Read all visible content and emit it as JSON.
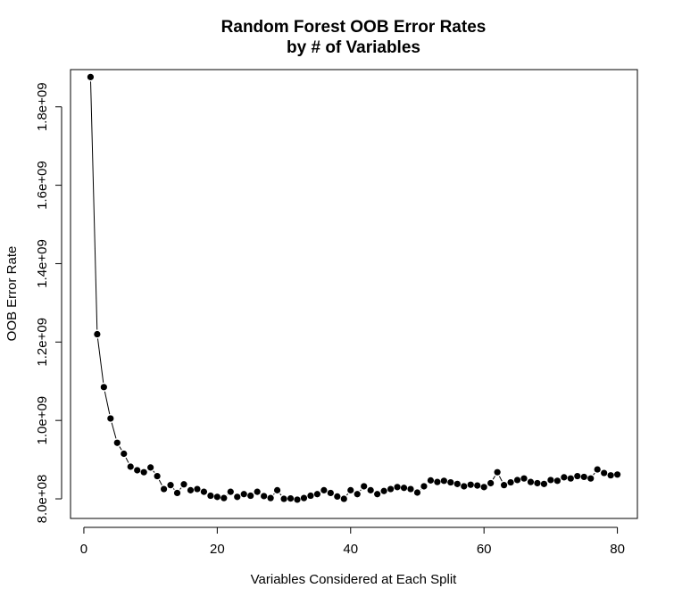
{
  "chart_data": {
    "type": "line",
    "title_lines": [
      "Random Forest OOB Error Rates",
      "by # of Variables"
    ],
    "xlabel": "Variables Considered at Each Split",
    "ylabel": "OOB Error Rate",
    "xlim": [
      -2,
      83
    ],
    "ylim": [
      750000000,
      1895000000
    ],
    "x_ticks": [
      0,
      20,
      40,
      60,
      80
    ],
    "x_tick_labels": [
      "0",
      "20",
      "40",
      "60",
      "80"
    ],
    "y_ticks": [
      800000000,
      1000000000,
      1200000000,
      1400000000,
      1600000000,
      1800000000
    ],
    "y_tick_labels": [
      "8.0e+08",
      "1.0e+09",
      "1.2e+09",
      "1.4e+09",
      "1.6e+09",
      "1.8e+09"
    ],
    "grid": false,
    "legend": "none",
    "series": [
      {
        "style": "points-and-lines",
        "color": "#000000",
        "x": [
          1,
          2,
          3,
          4,
          5,
          6,
          7,
          8,
          9,
          10,
          11,
          12,
          13,
          14,
          15,
          16,
          17,
          18,
          19,
          20,
          21,
          22,
          23,
          24,
          25,
          26,
          27,
          28,
          29,
          30,
          31,
          32,
          33,
          34,
          35,
          36,
          37,
          38,
          39,
          40,
          41,
          42,
          43,
          44,
          45,
          46,
          47,
          48,
          49,
          50,
          51,
          52,
          53,
          54,
          55,
          56,
          57,
          58,
          59,
          60,
          61,
          62,
          63,
          64,
          65,
          66,
          67,
          68,
          69,
          70,
          71,
          72,
          73,
          74,
          75,
          76,
          77,
          78,
          79,
          80
        ],
        "y": [
          1876000000,
          1220000000,
          1085000000,
          1005000000,
          943000000,
          915000000,
          882000000,
          873000000,
          868000000,
          880000000,
          858000000,
          825000000,
          835000000,
          815000000,
          837000000,
          822000000,
          825000000,
          818000000,
          808000000,
          805000000,
          802000000,
          818000000,
          805000000,
          812000000,
          808000000,
          818000000,
          807000000,
          802000000,
          822000000,
          800000000,
          801000000,
          798000000,
          802000000,
          808000000,
          812000000,
          822000000,
          815000000,
          806000000,
          800000000,
          822000000,
          812000000,
          832000000,
          822000000,
          812000000,
          820000000,
          825000000,
          830000000,
          828000000,
          825000000,
          816000000,
          832000000,
          847000000,
          843000000,
          846000000,
          842000000,
          838000000,
          832000000,
          836000000,
          834000000,
          830000000,
          840000000,
          868000000,
          835000000,
          842000000,
          848000000,
          852000000,
          843000000,
          840000000,
          838000000,
          848000000,
          846000000,
          855000000,
          852000000,
          858000000,
          856000000,
          852000000,
          875000000,
          866000000,
          860000000,
          862000000
        ]
      }
    ]
  }
}
